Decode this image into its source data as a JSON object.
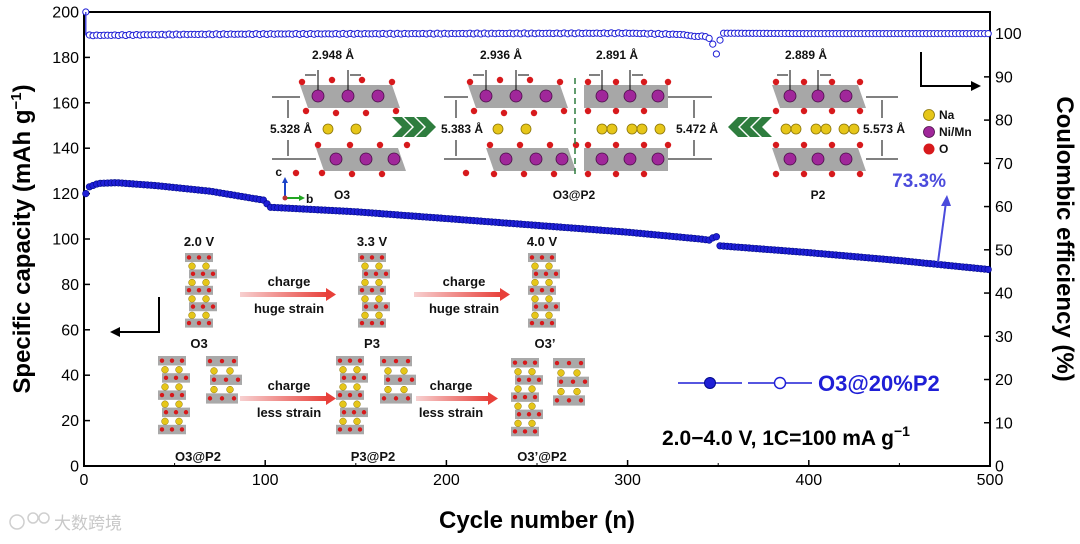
{
  "chart_data": {
    "type": "scatter",
    "xlabel": "Cycle number (n)",
    "ylabel_left": "Specific capacity (mAh g",
    "ylabel_left_sup": "−1",
    "ylabel_left_close": ")",
    "ylabel_right": "Coulombic efficiency (%)",
    "xlim": [
      0,
      500
    ],
    "ylim_left": [
      0,
      200
    ],
    "ylim_right": [
      0,
      105
    ],
    "x_ticks": [
      "0",
      "100",
      "200",
      "300",
      "400",
      "500"
    ],
    "y_left_ticks": [
      "0",
      "20",
      "40",
      "60",
      "80",
      "100",
      "120",
      "140",
      "160",
      "180",
      "200"
    ],
    "y_right_ticks": [
      "0",
      "10",
      "20",
      "30",
      "40",
      "50",
      "60",
      "70",
      "80",
      "90",
      "100"
    ],
    "series": [
      {
        "name": "Specific capacity",
        "axis": "left",
        "marker": "filled-circle",
        "color": "#1f1fd6",
        "points": [
          [
            1,
            120
          ],
          [
            3,
            123
          ],
          [
            8,
            124.5
          ],
          [
            18,
            124.8
          ],
          [
            40,
            123.5
          ],
          [
            70,
            121
          ],
          [
            100,
            117
          ],
          [
            102,
            114
          ],
          [
            150,
            112
          ],
          [
            200,
            109
          ],
          [
            250,
            106
          ],
          [
            300,
            103
          ],
          [
            340,
            100
          ],
          [
            345,
            99.5
          ],
          [
            347,
            100.5
          ],
          [
            349,
            101
          ],
          [
            351,
            97
          ],
          [
            400,
            94
          ],
          [
            450,
            90.5
          ],
          [
            500,
            86.5
          ]
        ]
      },
      {
        "name": "Coulombic efficiency",
        "axis": "right",
        "marker": "open-circle",
        "color": "#1f1fd6",
        "points": [
          [
            1,
            105
          ],
          [
            2,
            99.6
          ],
          [
            10,
            99.6
          ],
          [
            50,
            99.8
          ],
          [
            100,
            99.9
          ],
          [
            200,
            100
          ],
          [
            300,
            100.1
          ],
          [
            330,
            99.8
          ],
          [
            338,
            99.3
          ],
          [
            342,
            99.5
          ],
          [
            346,
            98.7
          ],
          [
            349,
            95.3
          ],
          [
            352,
            100.1
          ],
          [
            400,
            100
          ],
          [
            450,
            100
          ],
          [
            500,
            100
          ]
        ]
      }
    ],
    "legend": {
      "label": "O3@20%P2",
      "position": "right-middle"
    },
    "condition": "2.0−4.0 V, 1C=100 mA g",
    "condition_sup": "−1",
    "retention_label": "73.3%"
  },
  "inset_structures": {
    "d_o3_ab": "2.948 Å",
    "d_o3_c": "5.328 Å",
    "d_mix_o3_ab": "2.936 Å",
    "d_mix_o3_c": "5.383 Å",
    "d_mix_p2_ab": "2.891 Å",
    "d_mix_p2_c": "5.472 Å",
    "d_p2_ab": "2.889 Å",
    "d_p2_c": "5.573 Å",
    "label_o3": "O3",
    "label_mix": "O3@P2",
    "label_p2": "P2",
    "axis_c": "c",
    "axis_b": "b",
    "legend_na": "Na",
    "legend_nimn": "Ni/Mn",
    "legend_o": "O",
    "color_na": "#e6c619",
    "color_nimn": "#a0279a",
    "color_o": "#d7191c"
  },
  "phase_transition": {
    "row1": {
      "v1": "2.0 V",
      "v2": "3.3 V",
      "v3": "4.0 V",
      "p1": "O3",
      "p2": "P3",
      "p3": "O3’",
      "arrow_top": "charge",
      "arrow_bottom": "huge strain"
    },
    "row2": {
      "p1": "O3@P2",
      "p2": "P3@P2",
      "p3": "O3’@P2",
      "arrow_top": "charge",
      "arrow_bottom": "less strain"
    }
  },
  "watermark": "大数跨境"
}
